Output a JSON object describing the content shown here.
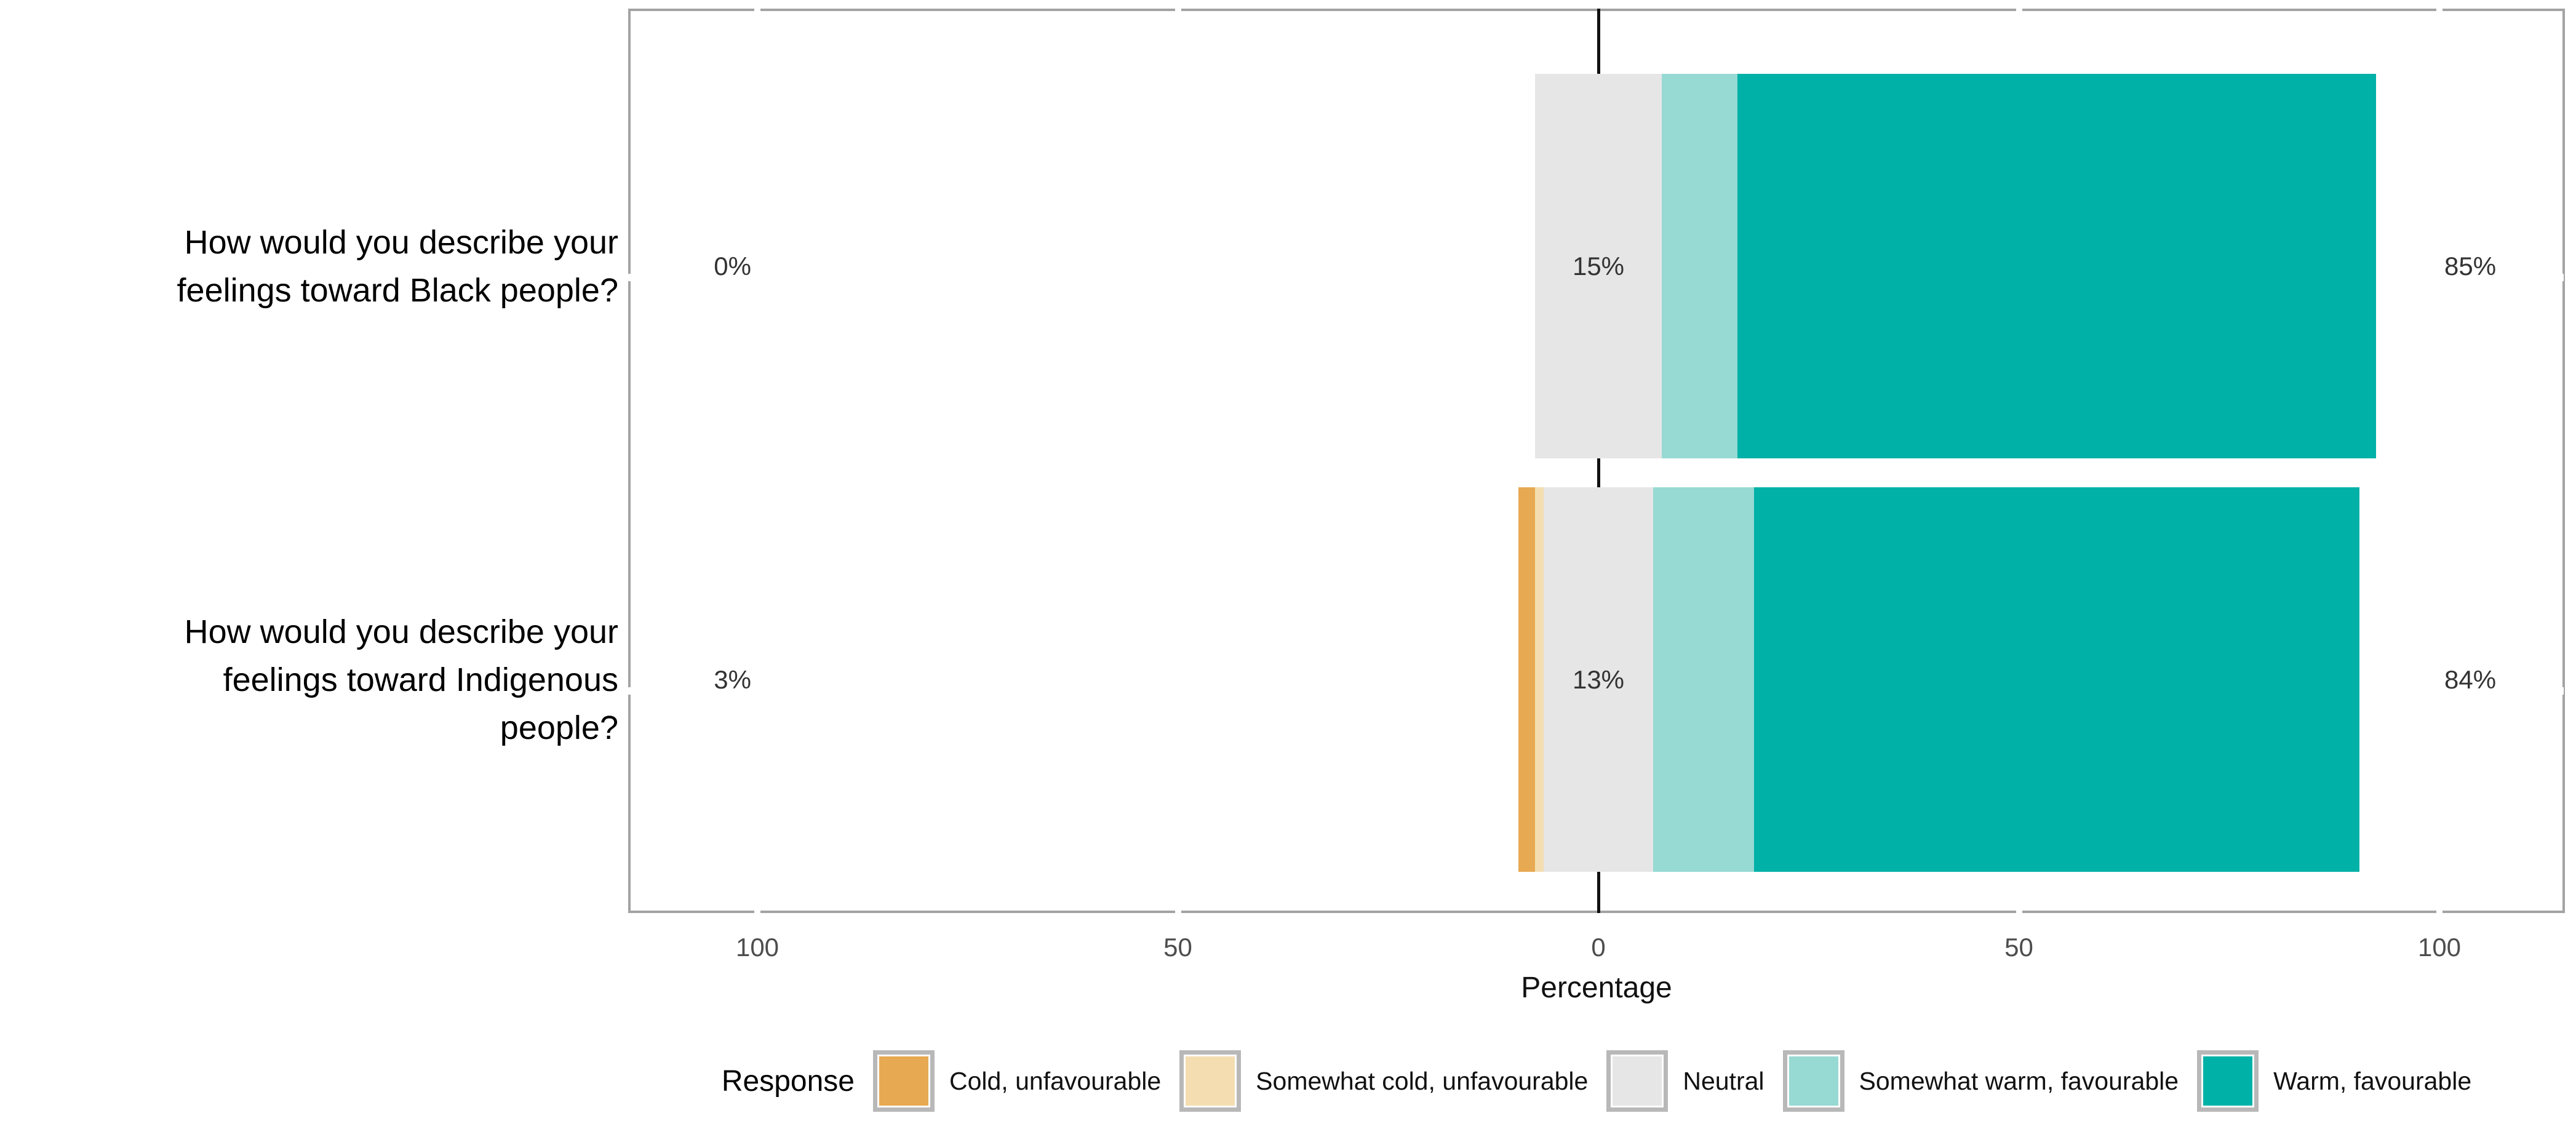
{
  "chart_data": {
    "type": "bar",
    "variant": "diverging-stacked-likert",
    "title": "",
    "xlabel": "Percentage",
    "x_tick_values": [
      -100,
      -50,
      0,
      50,
      100
    ],
    "x_tick_labels": [
      "100",
      "50",
      "0",
      "50",
      "100"
    ],
    "xlim": [
      -115,
      115
    ],
    "grid": "white-on-white",
    "legend_title": "Response",
    "legend_position": "bottom",
    "neutral_centered": true,
    "categories": [
      "How would you describe your\nfeelings toward Black people?",
      "How would you describe your\nfeelings toward Indigenous\npeople?"
    ],
    "series": [
      {
        "name": "Cold, unfavourable",
        "color": "#E7A952",
        "values": [
          0,
          2
        ]
      },
      {
        "name": "Somewhat cold, unfavourable",
        "color": "#F4DDB0",
        "values": [
          0,
          1
        ]
      },
      {
        "name": "Neutral",
        "color": "#E6E6E6",
        "values": [
          15,
          13
        ]
      },
      {
        "name": "Somewhat warm, favourable",
        "color": "#97D9D3",
        "values": [
          9,
          12
        ]
      },
      {
        "name": "Warm, favourable",
        "color": "#00B1A8",
        "values": [
          76,
          72
        ]
      }
    ],
    "row_totals": [
      {
        "negative": "0%",
        "neutral": "15%",
        "positive": "85%"
      },
      {
        "negative": "3%",
        "neutral": "13%",
        "positive": "84%"
      }
    ]
  },
  "styles": {
    "panel_border_color": "#A3A3A3",
    "zero_line_color": "#111111",
    "swatch_border_color": "#B8B8B8",
    "tick_label_color": "#4D4D4D",
    "total_label_color": "#333333"
  }
}
